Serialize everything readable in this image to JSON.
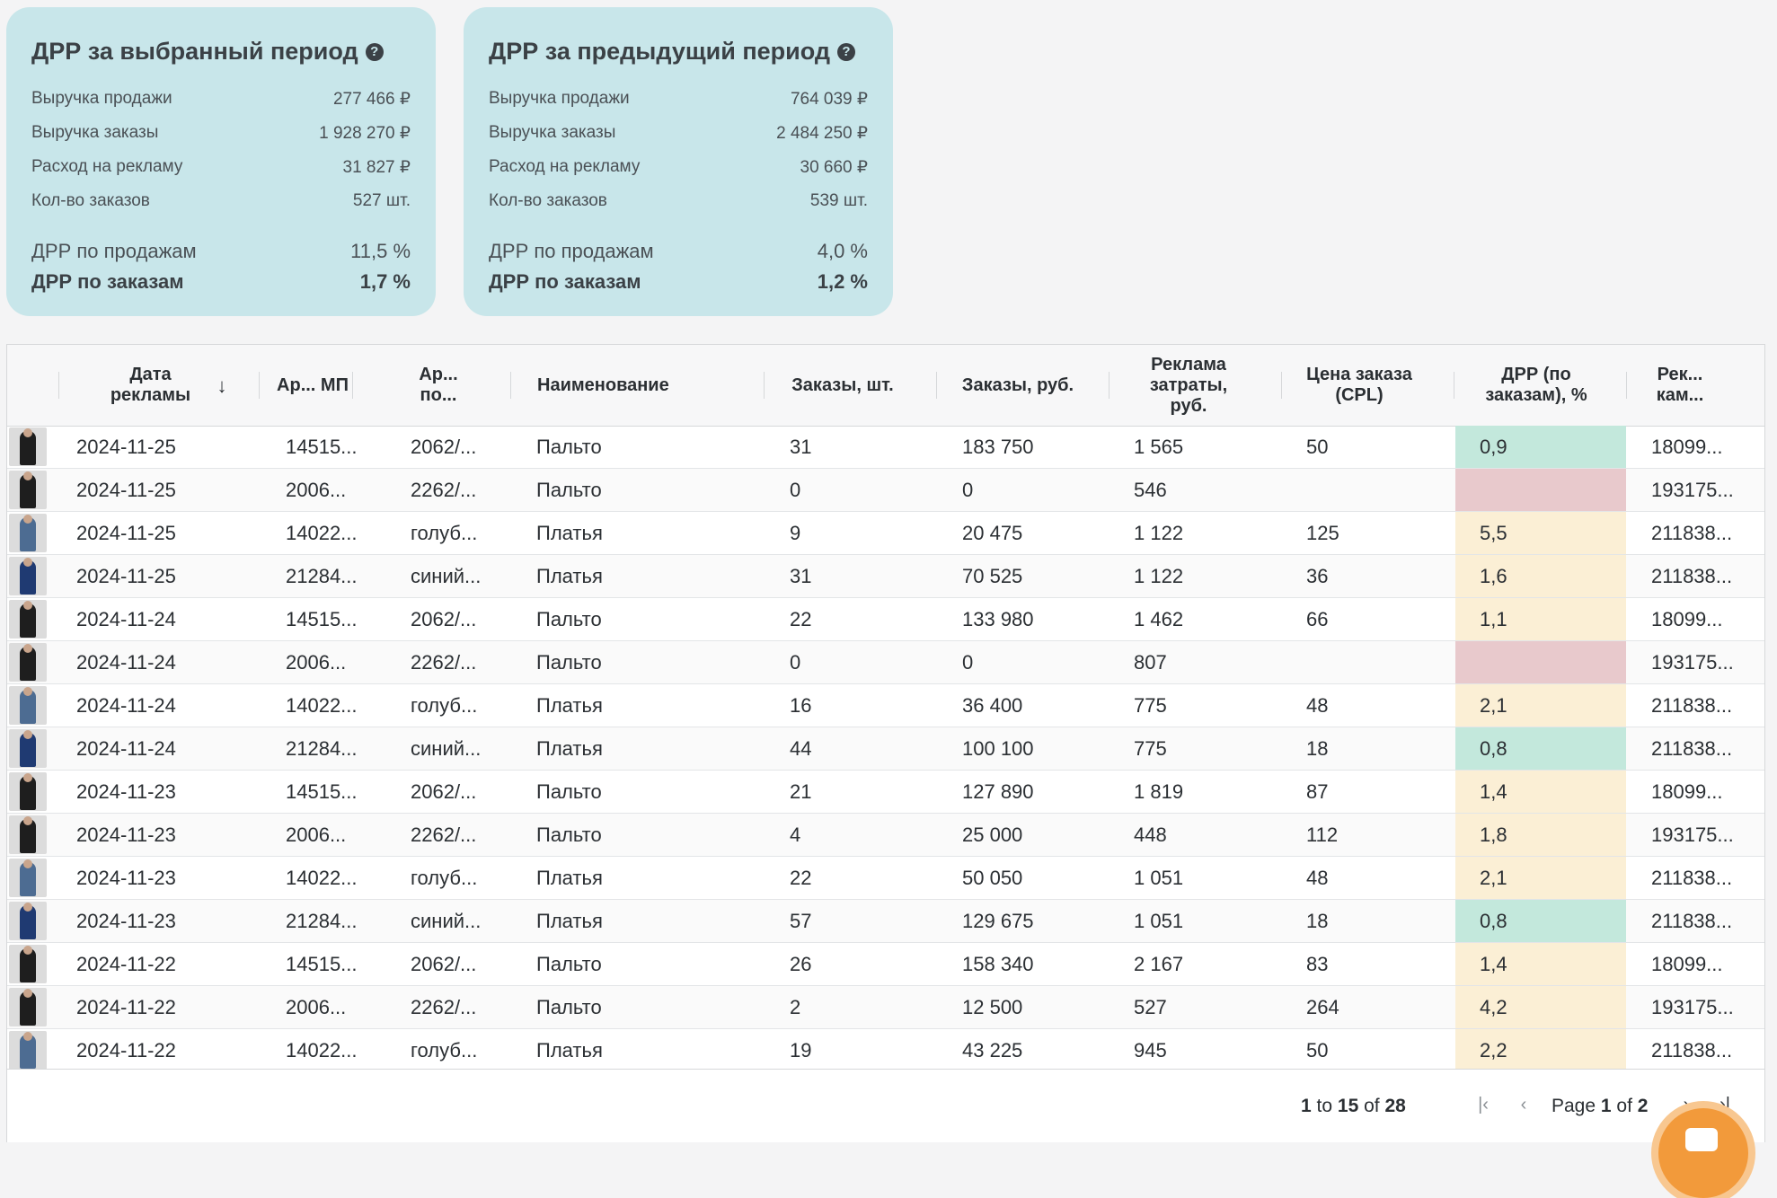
{
  "colors": {
    "card_bg": "#c8e6ea",
    "good": "#c3e8dc",
    "warn": "#fbefd5",
    "bad": "#e8c9cc",
    "accent_fab": "#f29a3b"
  },
  "card_current": {
    "title": "ДРР за выбранный период",
    "metrics": [
      {
        "label": "Выручка продажи",
        "value": "277 466 ₽"
      },
      {
        "label": "Выручка заказы",
        "value": "1 928 270 ₽"
      },
      {
        "label": "Расход на рекламу",
        "value": "31 827 ₽"
      },
      {
        "label": "Кол-во заказов",
        "value": "527 шт."
      }
    ],
    "drr_sales": {
      "label": "ДРР по продажам",
      "value": "11,5 %"
    },
    "drr_orders": {
      "label": "ДРР по заказам",
      "value": "1,7 %"
    }
  },
  "card_previous": {
    "title": "ДРР за предыдущий период",
    "metrics": [
      {
        "label": "Выручка продажи",
        "value": "764 039 ₽"
      },
      {
        "label": "Выручка заказы",
        "value": "2 484 250 ₽"
      },
      {
        "label": "Расход на рекламу",
        "value": "30 660 ₽"
      },
      {
        "label": "Кол-во заказов",
        "value": "539 шт."
      }
    ],
    "drr_sales": {
      "label": "ДРР по продажам",
      "value": "4,0 %"
    },
    "drr_orders": {
      "label": "ДРР по заказам",
      "value": "1,2 %"
    }
  },
  "table": {
    "headers": {
      "date": "Дата рекламы",
      "art_mp": "Ар... МП",
      "art_po": "Ар... по...",
      "name": "Наименование",
      "orders_qty": "Заказы, шт.",
      "orders_rub": "Заказы, руб.",
      "ad_cost": "Реклама затраты, руб.",
      "cpl": "Цена заказа (CPL)",
      "drr": "ДРР (по заказам), %",
      "campaign": "Рек... кам..."
    },
    "rows": [
      {
        "thumb": "black-coat",
        "date": "2024-11-25",
        "art_mp": "14515...",
        "art_po": "2062/...",
        "name": "Пальто",
        "orders_qty": "31",
        "orders_rub": "183 750",
        "ad_cost": "1 565",
        "cpl": "50",
        "drr": "0,9",
        "drr_status": "good",
        "campaign": "18099..."
      },
      {
        "thumb": "black-coat",
        "date": "2024-11-25",
        "art_mp": "2006...",
        "art_po": "2262/...",
        "name": "Пальто",
        "orders_qty": "0",
        "orders_rub": "0",
        "ad_cost": "546",
        "cpl": "",
        "drr": "",
        "drr_status": "bad",
        "campaign": "193175..."
      },
      {
        "thumb": "blue-dress",
        "date": "2024-11-25",
        "art_mp": "14022...",
        "art_po": "голуб...",
        "name": "Платья",
        "orders_qty": "9",
        "orders_rub": "20 475",
        "ad_cost": "1 122",
        "cpl": "125",
        "drr": "5,5",
        "drr_status": "warn",
        "campaign": "211838..."
      },
      {
        "thumb": "navy-dress",
        "date": "2024-11-25",
        "art_mp": "21284...",
        "art_po": "синий...",
        "name": "Платья",
        "orders_qty": "31",
        "orders_rub": "70 525",
        "ad_cost": "1 122",
        "cpl": "36",
        "drr": "1,6",
        "drr_status": "warn",
        "campaign": "211838..."
      },
      {
        "thumb": "black-coat",
        "date": "2024-11-24",
        "art_mp": "14515...",
        "art_po": "2062/...",
        "name": "Пальто",
        "orders_qty": "22",
        "orders_rub": "133 980",
        "ad_cost": "1 462",
        "cpl": "66",
        "drr": "1,1",
        "drr_status": "warn",
        "campaign": "18099..."
      },
      {
        "thumb": "black-coat",
        "date": "2024-11-24",
        "art_mp": "2006...",
        "art_po": "2262/...",
        "name": "Пальто",
        "orders_qty": "0",
        "orders_rub": "0",
        "ad_cost": "807",
        "cpl": "",
        "drr": "",
        "drr_status": "bad",
        "campaign": "193175..."
      },
      {
        "thumb": "blue-dress",
        "date": "2024-11-24",
        "art_mp": "14022...",
        "art_po": "голуб...",
        "name": "Платья",
        "orders_qty": "16",
        "orders_rub": "36 400",
        "ad_cost": "775",
        "cpl": "48",
        "drr": "2,1",
        "drr_status": "warn",
        "campaign": "211838..."
      },
      {
        "thumb": "navy-dress",
        "date": "2024-11-24",
        "art_mp": "21284...",
        "art_po": "синий...",
        "name": "Платья",
        "orders_qty": "44",
        "orders_rub": "100 100",
        "ad_cost": "775",
        "cpl": "18",
        "drr": "0,8",
        "drr_status": "good",
        "campaign": "211838..."
      },
      {
        "thumb": "black-coat",
        "date": "2024-11-23",
        "art_mp": "14515...",
        "art_po": "2062/...",
        "name": "Пальто",
        "orders_qty": "21",
        "orders_rub": "127 890",
        "ad_cost": "1 819",
        "cpl": "87",
        "drr": "1,4",
        "drr_status": "warn",
        "campaign": "18099..."
      },
      {
        "thumb": "black-coat",
        "date": "2024-11-23",
        "art_mp": "2006...",
        "art_po": "2262/...",
        "name": "Пальто",
        "orders_qty": "4",
        "orders_rub": "25 000",
        "ad_cost": "448",
        "cpl": "112",
        "drr": "1,8",
        "drr_status": "warn",
        "campaign": "193175..."
      },
      {
        "thumb": "blue-dress",
        "date": "2024-11-23",
        "art_mp": "14022...",
        "art_po": "голуб...",
        "name": "Платья",
        "orders_qty": "22",
        "orders_rub": "50 050",
        "ad_cost": "1 051",
        "cpl": "48",
        "drr": "2,1",
        "drr_status": "warn",
        "campaign": "211838..."
      },
      {
        "thumb": "navy-dress",
        "date": "2024-11-23",
        "art_mp": "21284...",
        "art_po": "синий...",
        "name": "Платья",
        "orders_qty": "57",
        "orders_rub": "129 675",
        "ad_cost": "1 051",
        "cpl": "18",
        "drr": "0,8",
        "drr_status": "good",
        "campaign": "211838..."
      },
      {
        "thumb": "black-coat",
        "date": "2024-11-22",
        "art_mp": "14515...",
        "art_po": "2062/...",
        "name": "Пальто",
        "orders_qty": "26",
        "orders_rub": "158 340",
        "ad_cost": "2 167",
        "cpl": "83",
        "drr": "1,4",
        "drr_status": "warn",
        "campaign": "18099..."
      },
      {
        "thumb": "black-coat",
        "date": "2024-11-22",
        "art_mp": "2006...",
        "art_po": "2262/...",
        "name": "Пальто",
        "orders_qty": "2",
        "orders_rub": "12 500",
        "ad_cost": "527",
        "cpl": "264",
        "drr": "4,2",
        "drr_status": "warn",
        "campaign": "193175..."
      },
      {
        "thumb": "blue-dress",
        "date": "2024-11-22",
        "art_mp": "14022...",
        "art_po": "голуб...",
        "name": "Платья",
        "orders_qty": "19",
        "orders_rub": "43 225",
        "ad_cost": "945",
        "cpl": "50",
        "drr": "2,2",
        "drr_status": "warn",
        "campaign": "211838..."
      }
    ]
  },
  "pagination": {
    "range_from": "1",
    "to_word": "to",
    "range_to": "15",
    "of_word": "of",
    "total": "28",
    "page_word": "Page",
    "page_current": "1",
    "page_of": "of",
    "page_total": "2"
  }
}
